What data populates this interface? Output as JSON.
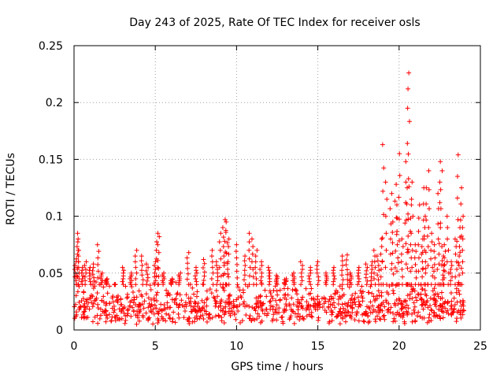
{
  "chart_data": {
    "type": "scatter",
    "title": "Day 243 of 2025, Rate Of TEC Index for receiver osls",
    "xlabel": "GPS time / hours",
    "ylabel": "ROTI / TECUs",
    "xlim": [
      0,
      25
    ],
    "ylim": [
      0,
      0.25
    ],
    "xticks": [
      0,
      5,
      10,
      15,
      20,
      25
    ],
    "xtick_labels": [
      "0",
      "5",
      "10",
      "15",
      "20",
      "25"
    ],
    "yticks": [
      0,
      0.05,
      0.1,
      0.15,
      0.2,
      0.25
    ],
    "ytick_labels": [
      "0",
      "0.05",
      "0.1",
      "0.15",
      "0.2",
      "0.25"
    ],
    "grid": true,
    "marker": "+",
    "color": "#ff0000",
    "series": [
      {
        "name": "ROTI",
        "x": [
          0.1,
          0.2,
          0.25,
          0.3,
          0.5,
          0.7,
          1.0,
          1.2,
          1.5,
          1.7,
          2.0,
          2.5,
          3.0,
          3.5,
          3.8,
          4.2,
          4.5,
          5.0,
          5.1,
          5.2,
          5.5,
          6.0,
          6.5,
          7.0,
          7.5,
          8.0,
          8.5,
          8.8,
          9.0,
          9.2,
          9.3,
          9.4,
          9.5,
          10.0,
          10.5,
          10.8,
          11.0,
          11.2,
          11.5,
          12.0,
          12.5,
          13.0,
          13.5,
          14.0,
          14.5,
          15.0,
          15.5,
          16.0,
          16.5,
          16.8,
          17.0,
          17.5,
          18.0,
          18.3,
          18.5,
          18.7,
          18.9,
          19.0,
          19.2,
          19.5,
          19.6,
          19.8,
          19.9,
          20.0,
          20.2,
          20.4,
          20.5,
          20.55,
          20.6,
          20.7,
          20.8,
          21.0,
          21.2,
          21.4,
          21.5,
          21.6,
          21.7,
          21.8,
          22.0,
          22.2,
          22.4,
          22.5,
          22.6,
          22.7,
          22.8,
          23.0,
          23.2,
          23.5,
          23.6,
          23.7,
          23.8,
          23.9
        ],
        "y": [
          0.06,
          0.085,
          0.08,
          0.07,
          0.055,
          0.06,
          0.055,
          0.058,
          0.075,
          0.05,
          0.045,
          0.04,
          0.055,
          0.05,
          0.07,
          0.065,
          0.058,
          0.06,
          0.085,
          0.082,
          0.05,
          0.045,
          0.05,
          0.068,
          0.055,
          0.062,
          0.07,
          0.06,
          0.085,
          0.09,
          0.097,
          0.095,
          0.08,
          0.075,
          0.065,
          0.085,
          0.08,
          0.07,
          0.06,
          0.055,
          0.048,
          0.045,
          0.05,
          0.06,
          0.055,
          0.06,
          0.05,
          0.055,
          0.065,
          0.066,
          0.05,
          0.055,
          0.058,
          0.06,
          0.07,
          0.065,
          0.08,
          0.163,
          0.13,
          0.12,
          0.095,
          0.128,
          0.11,
          0.155,
          0.08,
          0.148,
          0.125,
          0.226,
          0.212,
          0.11,
          0.13,
          0.075,
          0.11,
          0.08,
          0.125,
          0.1,
          0.125,
          0.14,
          0.085,
          0.075,
          0.12,
          0.148,
          0.14,
          0.065,
          0.075,
          0.1,
          0.06,
          0.08,
          0.154,
          0.09,
          0.125,
          0.1
        ],
        "baseline_min": 0.005,
        "baseline_max": 0.04,
        "baseline_density": 900
      }
    ]
  }
}
